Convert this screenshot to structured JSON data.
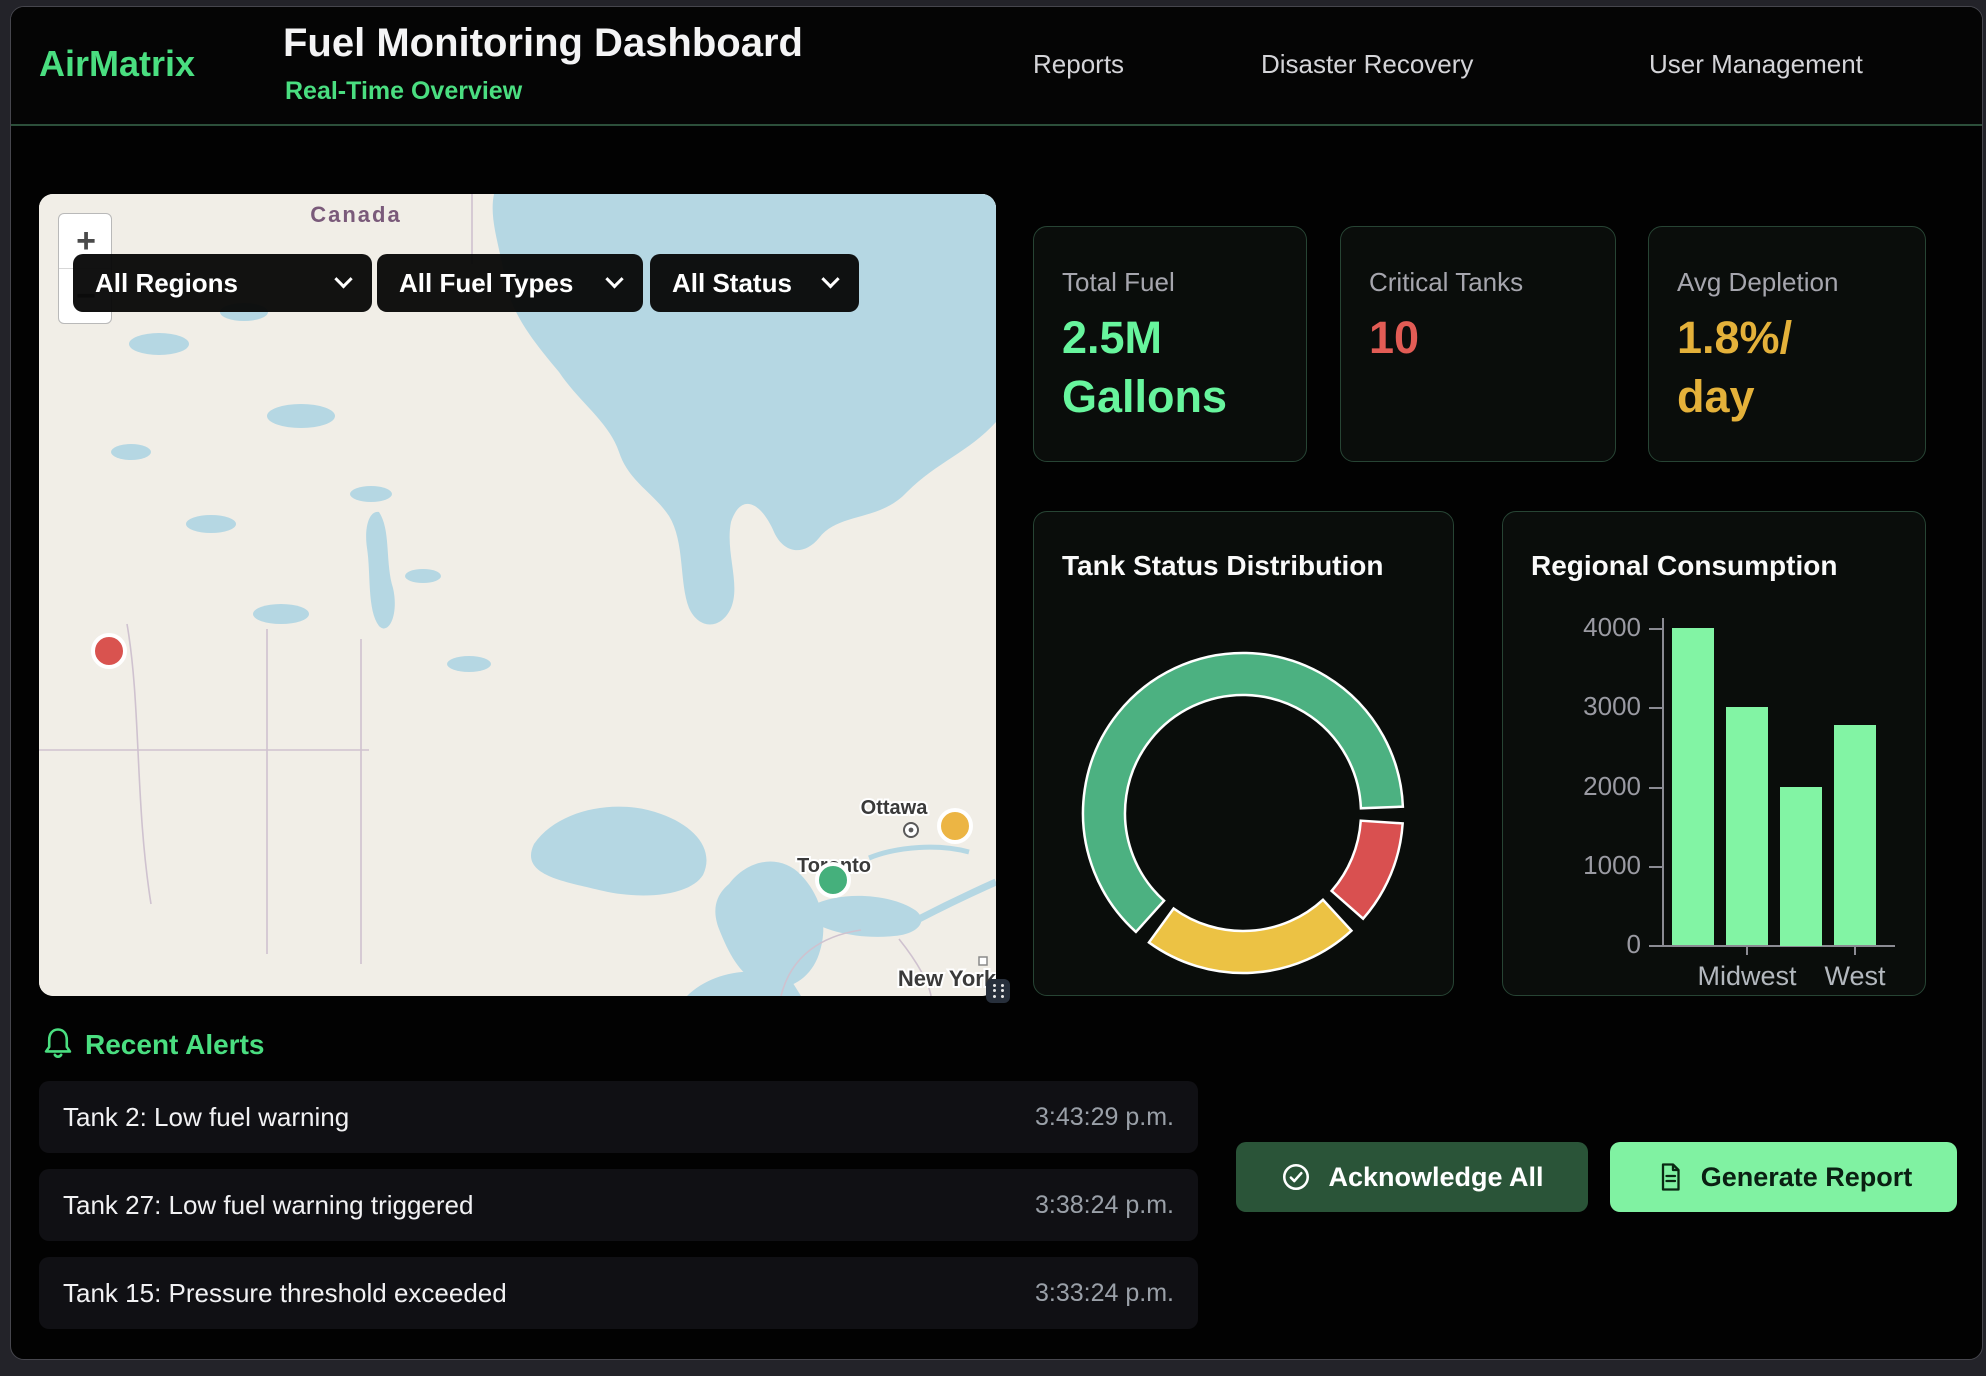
{
  "header": {
    "logo": "AirMatrix",
    "title": "Fuel Monitoring Dashboard",
    "subtitle": "Real-Time Overview",
    "nav": [
      {
        "label": "Reports"
      },
      {
        "label": "Disaster Recovery"
      },
      {
        "label": "User Management"
      }
    ]
  },
  "map": {
    "country_label": "Canada",
    "city_labels": [
      "Ottawa",
      "Toronto",
      "New York"
    ],
    "zoom_in": "+",
    "zoom_out": "−",
    "filters": [
      {
        "label": "All Regions"
      },
      {
        "label": "All Fuel Types"
      },
      {
        "label": "All Status"
      }
    ],
    "markers": [
      {
        "status": "critical",
        "color": "#d9534f"
      },
      {
        "status": "warning",
        "color": "#ecb544"
      },
      {
        "status": "normal",
        "color": "#45b07c"
      }
    ]
  },
  "kpis": [
    {
      "label": "Total Fuel",
      "value": "2.5M\nGallons",
      "color": "#67f59d"
    },
    {
      "label": "Critical Tanks",
      "value": "10",
      "color": "#e25c55"
    },
    {
      "label": "Avg Depletion",
      "value": "1.8%/\nday",
      "color": "#e4b13a"
    }
  ],
  "chart_data": [
    {
      "type": "pie",
      "donut": true,
      "title": "Tank Status Distribution",
      "segments": [
        {
          "name": "green-normal",
          "value": 66,
          "color": "#4cb181"
        },
        {
          "name": "red-critical",
          "value": 11,
          "color": "#d95050"
        },
        {
          "name": "yellow-warning",
          "value": 23,
          "color": "#ecc244"
        }
      ],
      "start_angle_deg": 222,
      "legend": "none"
    },
    {
      "type": "bar",
      "title": "Regional Consumption",
      "values": [
        4000,
        3000,
        2000,
        2780
      ],
      "x_tick_labels_visible": [
        "Midwest",
        "West"
      ],
      "x_tick_label_bar_indexes": [
        1,
        3
      ],
      "yticks": [
        0,
        1000,
        2000,
        3000,
        4000
      ],
      "ylim": [
        0,
        4000
      ],
      "bar_color": "#82f4a4",
      "grid": false
    }
  ],
  "alerts": {
    "title": "Recent Alerts",
    "items": [
      {
        "message": "Tank 2: Low fuel warning",
        "time": "3:43:29 p.m."
      },
      {
        "message": "Tank 27: Low fuel warning triggered",
        "time": "3:38:24 p.m."
      },
      {
        "message": "Tank 15: Pressure threshold exceeded",
        "time": "3:33:24 p.m."
      }
    ]
  },
  "actions": {
    "acknowledge_all": "Acknowledge All",
    "generate_report": "Generate Report"
  }
}
